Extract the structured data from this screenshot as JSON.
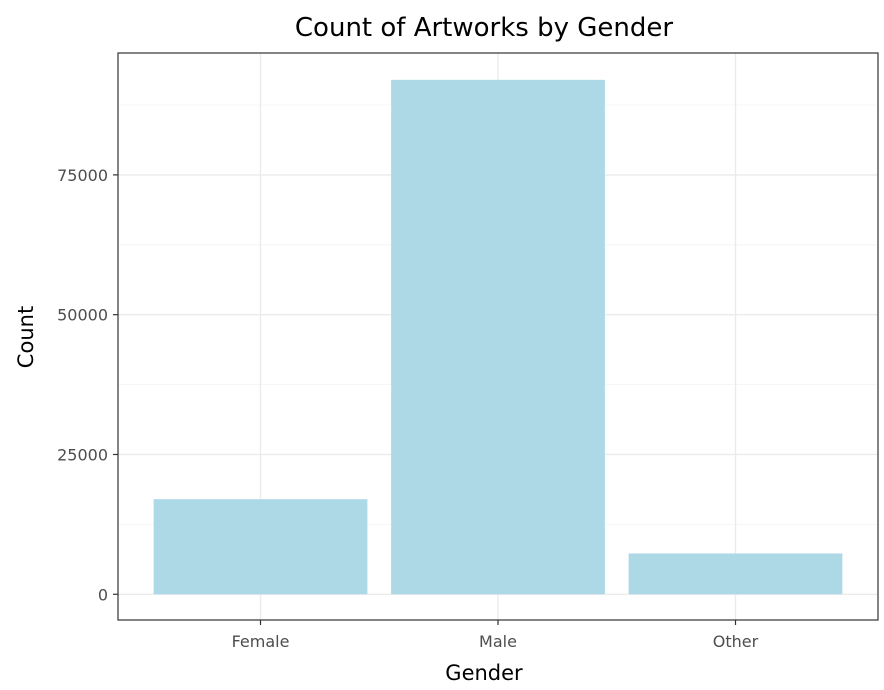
{
  "chart_data": {
    "type": "bar",
    "title": "Count of Artworks by Gender",
    "xlabel": "Gender",
    "ylabel": "Count",
    "categories": [
      "Female",
      "Male",
      "Other"
    ],
    "values": [
      17000,
      92000,
      7300
    ],
    "ylim": [
      -4600,
      96800
    ],
    "yticks": [
      0,
      25000,
      50000,
      75000
    ],
    "ytick_labels": [
      "0",
      "25000",
      "50000",
      "75000"
    ],
    "bar_color": "#add8e6",
    "grid": true,
    "theme": "bw"
  }
}
